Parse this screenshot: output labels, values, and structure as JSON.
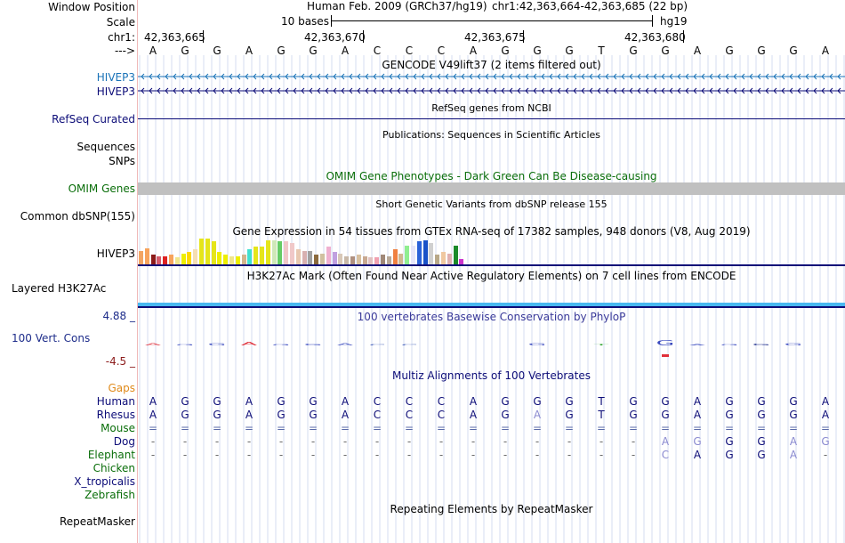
{
  "header": {
    "window_position_label": "Window Position",
    "scale_label": "Scale",
    "chrom_label": "chr1:",
    "strand_label": "--->",
    "assembly_text": "Human Feb. 2009 (GRCh37/hg19)",
    "position_text": "chr1:42,363,664-42,363,685 (22 bp)",
    "scale_text": "10 bases",
    "genome_tag": "hg19",
    "coordinates": [
      "42,363,665",
      "42,363,670",
      "42,363,675",
      "42,363,680"
    ],
    "bases": [
      "A",
      "G",
      "G",
      "A",
      "G",
      "G",
      "A",
      "C",
      "C",
      "C",
      "A",
      "G",
      "G",
      "G",
      "T",
      "G",
      "G",
      "A",
      "G",
      "G",
      "G",
      "A"
    ]
  },
  "tracks": {
    "gencode": {
      "title": "GENCODE V49lift37 (2 items filtered out)",
      "genes": [
        "HIVEP3",
        "HIVEP3"
      ],
      "color": "#1a73b8"
    },
    "refseq": {
      "title": "RefSeq genes from NCBI",
      "label": "RefSeq Curated",
      "color": "#0c0c78"
    },
    "publications": {
      "title": "Publications: Sequences in Scientific Articles",
      "labels": [
        "Sequences",
        "SNPs"
      ]
    },
    "omim": {
      "title": "OMIM Gene Phenotypes - Dark Green Can Be Disease-causing",
      "label": "OMIM Genes",
      "color": "#0a6e0a",
      "bar_color": "#c0c0c0"
    },
    "dbsnp": {
      "title": "Short Genetic Variants from dbSNP release 155",
      "label": "Common dbSNP(155)"
    },
    "gtex": {
      "title": "Gene Expression in 54 tissues from GTEx RNA-seq of 17382 samples, 948 donors (V8, Aug 2019)",
      "label": "HIVEP3",
      "values": [
        0.5,
        0.6,
        0.35,
        0.3,
        0.3,
        0.35,
        0.25,
        0.4,
        0.45,
        0.55,
        0.95,
        0.95,
        0.85,
        0.45,
        0.35,
        0.3,
        0.3,
        0.35,
        0.55,
        0.65,
        0.65,
        0.9,
        0.9,
        0.85,
        0.85,
        0.8,
        0.55,
        0.5,
        0.5,
        0.35,
        0.4,
        0.65,
        0.45,
        0.4,
        0.3,
        0.3,
        0.35,
        0.3,
        0.25,
        0.25,
        0.35,
        0.3,
        0.55,
        0.4,
        0.7,
        0.7,
        0.85,
        0.9,
        0.8,
        0.35,
        0.45,
        0.4,
        0.7,
        0.2
      ],
      "colors": [
        "#f3a562",
        "#f7a35c",
        "#8b1a1a",
        "#d65a6b",
        "#dd2222",
        "#f7a35c",
        "#f0e68c",
        "#eeee00",
        "#ffd700",
        "#f5deb3",
        "#e5e51a",
        "#e5e51a",
        "#e5e51a",
        "#eeee00",
        "#eeee00",
        "#f0e68c",
        "#eeee00",
        "#d2b48c",
        "#40e0d0",
        "#e5e51a",
        "#e5e51a",
        "#e5e51a",
        "#cfe8b8",
        "#66cc66",
        "#f0c8c8",
        "#f0c8c8",
        "#e8c8b0",
        "#d8b0b0",
        "#a0a0a0",
        "#8b6a3e",
        "#d0c0a0",
        "#f0b0d0",
        "#c0a0e0",
        "#d8c8b8",
        "#c8b8a8",
        "#b09080",
        "#d8c0a0",
        "#c8a890",
        "#e0c0c0",
        "#f0a0b0",
        "#a08878",
        "#b8a898",
        "#f08040",
        "#d0b890",
        "#90ee90",
        "#e6e6fa",
        "#2a62d8",
        "#1a52c8",
        "#d0d0d0",
        "#b8a888",
        "#f0c8a0",
        "#e0b0b0",
        "#1a8a2a",
        "#cc33cc"
      ]
    },
    "h3k27ac": {
      "title": "H3K27Ac Mark (Often Found Near Active Regulatory Elements) on 7 cell lines from ENCODE",
      "label": "Layered H3K27Ac"
    },
    "phylop": {
      "title": "100 vertebrates Basewise Conservation by PhyloP",
      "label": "100 Vert. Cons",
      "max_label": "4.88 _",
      "min_label": "-4.5 _",
      "values": [
        0.6,
        -0.3,
        -0.6,
        0.8,
        -0.3,
        -0.4,
        -0.6,
        0.3,
        0.3,
        0.0,
        0.0,
        0.0,
        -0.5,
        0.0,
        0.2,
        0.0,
        -1.2,
        -0.2,
        -0.2,
        0.4,
        -0.5,
        0.0
      ],
      "color": "#1d2c8a",
      "min_color": "#8b1a1a"
    },
    "multiz": {
      "title": "Multiz Alignments of 100 Vertebrates",
      "gaps_label": "Gaps",
      "species": [
        {
          "name": "Human",
          "color": "#0c0c78",
          "bases": [
            "A",
            "G",
            "G",
            "A",
            "G",
            "G",
            "A",
            "C",
            "C",
            "C",
            "A",
            "G",
            "G",
            "G",
            "T",
            "G",
            "G",
            "A",
            "G",
            "G",
            "G",
            "A"
          ]
        },
        {
          "name": "Rhesus",
          "color": "#0c0c78",
          "bases": [
            "A",
            "G",
            "G",
            "A",
            "G",
            "G",
            "A",
            "C",
            "C",
            "C",
            "A",
            "G",
            "A",
            "G",
            "T",
            "G",
            "G",
            "A",
            "G",
            "G",
            "G",
            "A"
          ]
        },
        {
          "name": "Mouse",
          "color": "#0a6e0a",
          "bases": [
            "=",
            "=",
            "=",
            "=",
            "=",
            "=",
            "=",
            "=",
            "=",
            "=",
            "=",
            "=",
            "=",
            "=",
            "=",
            "=",
            "=",
            "=",
            "=",
            "=",
            "=",
            "="
          ]
        },
        {
          "name": "Dog",
          "color": "#0c0c78",
          "bases": [
            "-",
            "-",
            "-",
            "-",
            "-",
            "-",
            "-",
            "-",
            "-",
            "-",
            "-",
            "-",
            "-",
            "-",
            "-",
            "-",
            "A",
            "G",
            "G",
            "G",
            "A",
            "G"
          ]
        },
        {
          "name": "Elephant",
          "color": "#0a6e0a",
          "bases": [
            "-",
            "-",
            "-",
            "-",
            "-",
            "-",
            "-",
            "-",
            "-",
            "-",
            "-",
            "-",
            "-",
            "-",
            "-",
            "-",
            "C",
            "A",
            "G",
            "G",
            "A",
            "-"
          ]
        },
        {
          "name": "Chicken",
          "color": "#0a6e0a",
          "bases": []
        },
        {
          "name": "X_tropicalis",
          "color": "#0c0c78",
          "bases": []
        },
        {
          "name": "Zebrafish",
          "color": "#0a6e0a",
          "bases": []
        }
      ]
    },
    "repeatmasker": {
      "title": "Repeating Elements by RepeatMasker",
      "label": "RepeatMasker"
    }
  }
}
